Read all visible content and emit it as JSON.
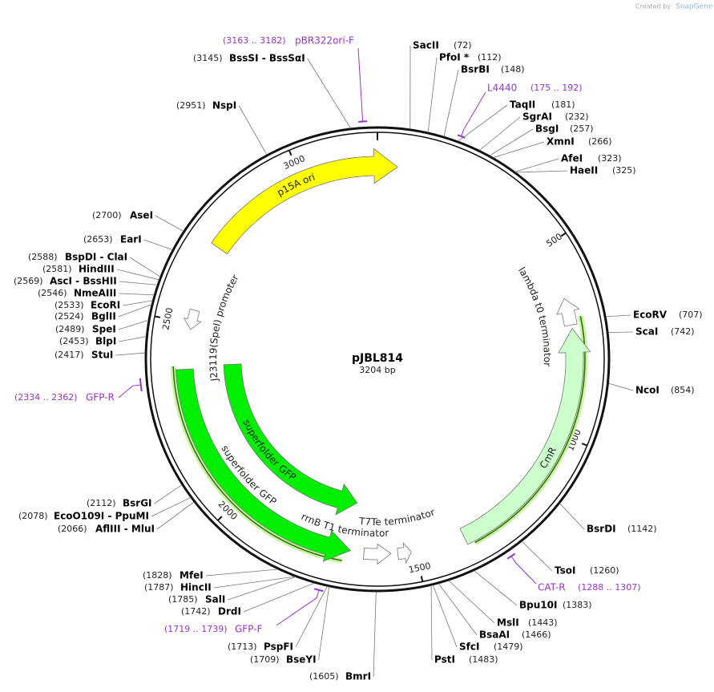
{
  "credit": "Created by",
  "brand": "SnapGene",
  "plasmid": {
    "name": "pJBL814",
    "size": {
      "value": 3204,
      "label": "3204 bp"
    }
  },
  "ticks": [
    500,
    1000,
    1500,
    2000,
    2500,
    3000
  ],
  "sites": [
    {
      "name": "SacII",
      "position": {
        "value": 72,
        "label": "(72)"
      }
    },
    {
      "name": "PfoI *",
      "position": {
        "value": 112,
        "label": "(112)"
      }
    },
    {
      "name": "BsrBI",
      "position": {
        "value": 148,
        "label": "(148)"
      }
    },
    {
      "name": "TaqII",
      "position": {
        "value": 181,
        "label": "(181)"
      }
    },
    {
      "name": "SgrAI",
      "position": {
        "value": 232,
        "label": "(232)"
      }
    },
    {
      "name": "BsgI",
      "position": {
        "value": 257,
        "label": "(257)"
      }
    },
    {
      "name": "XmnI",
      "position": {
        "value": 266,
        "label": "(266)"
      }
    },
    {
      "name": "AfeI",
      "position": {
        "value": 323,
        "label": "(323)"
      }
    },
    {
      "name": "HaeII",
      "position": {
        "value": 325,
        "label": "(325)"
      }
    },
    {
      "name": "EcoRV",
      "position": {
        "value": 707,
        "label": "(707)"
      }
    },
    {
      "name": "ScaI",
      "position": {
        "value": 742,
        "label": "(742)"
      }
    },
    {
      "name": "NcoI",
      "position": {
        "value": 854,
        "label": "(854)"
      }
    },
    {
      "name": "BsrDI",
      "position": {
        "value": 1142,
        "label": "(1142)"
      }
    },
    {
      "name": "TsoI",
      "position": {
        "value": 1260,
        "label": "(1260)"
      }
    },
    {
      "name": "Bpu10I",
      "position": {
        "value": 1383,
        "label": "(1383)"
      }
    },
    {
      "name": "MslI",
      "position": {
        "value": 1443,
        "label": "(1443)"
      }
    },
    {
      "name": "BsaAI",
      "position": {
        "value": 1466,
        "label": "(1466)"
      }
    },
    {
      "name": "SfcI",
      "position": {
        "value": 1479,
        "label": "(1479)"
      }
    },
    {
      "name": "PstI",
      "position": {
        "value": 1483,
        "label": "(1483)"
      }
    },
    {
      "name": "BmrI",
      "position": {
        "value": 1605,
        "label": "(1605)"
      }
    },
    {
      "name": "BseYI",
      "position": {
        "value": 1709,
        "label": "(1709)"
      }
    },
    {
      "name": "PspFI",
      "position": {
        "value": 1713,
        "label": "(1713)"
      }
    },
    {
      "name": "DrdI",
      "position": {
        "value": 1742,
        "label": "(1742)"
      }
    },
    {
      "name": "SalI",
      "position": {
        "value": 1785,
        "label": "(1785)"
      }
    },
    {
      "name": "HincII",
      "position": {
        "value": 1787,
        "label": "(1787)"
      }
    },
    {
      "name": "MfeI",
      "position": {
        "value": 1828,
        "label": "(1828)"
      }
    },
    {
      "name": "AflIII - MluI",
      "position": {
        "value": 2066,
        "label": "(2066)"
      }
    },
    {
      "name": "EcoO109I - PpuMI",
      "position": {
        "value": 2078,
        "label": "(2078)"
      }
    },
    {
      "name": "BsrGI",
      "position": {
        "value": 2112,
        "label": "(2112)"
      }
    },
    {
      "name": "StuI",
      "position": {
        "value": 2417,
        "label": "(2417)"
      }
    },
    {
      "name": "BlpI",
      "position": {
        "value": 2453,
        "label": "(2453)"
      }
    },
    {
      "name": "SpeI",
      "position": {
        "value": 2489,
        "label": "(2489)"
      }
    },
    {
      "name": "BglII",
      "position": {
        "value": 2524,
        "label": "(2524)"
      }
    },
    {
      "name": "EcoRI",
      "position": {
        "value": 2533,
        "label": "(2533)"
      }
    },
    {
      "name": "NmeAIII",
      "position": {
        "value": 2546,
        "label": "(2546)"
      }
    },
    {
      "name": "AscI - BssHII",
      "position": {
        "value": 2569,
        "label": "(2569)"
      }
    },
    {
      "name": "HindIII",
      "position": {
        "value": 2581,
        "label": "(2581)"
      }
    },
    {
      "name": "BspDI - ClaI",
      "position": {
        "value": 2588,
        "label": "(2588)"
      }
    },
    {
      "name": "EarI",
      "position": {
        "value": 2653,
        "label": "(2653)"
      }
    },
    {
      "name": "AseI",
      "position": {
        "value": 2700,
        "label": "(2700)"
      }
    },
    {
      "name": "NspI",
      "position": {
        "value": 2951,
        "label": "(2951)"
      }
    },
    {
      "name": "BssSI - BssSαI",
      "position": {
        "value": 3145,
        "label": "(3145)"
      }
    }
  ],
  "primers": [
    {
      "name": "pBR322ori-F",
      "range": {
        "start": 3163,
        "end": 3182,
        "label": "(3163 .. 3182)"
      }
    },
    {
      "name": "L4440",
      "range": {
        "start": 175,
        "end": 192,
        "label": "(175 .. 192)"
      }
    },
    {
      "name": "CAT-R",
      "range": {
        "start": 1288,
        "end": 1307,
        "label": "(1288 .. 1307)"
      }
    },
    {
      "name": "GFP-F",
      "range": {
        "start": 1719,
        "end": 1739,
        "label": "(1719 .. 1739)"
      }
    },
    {
      "name": "GFP-R",
      "range": {
        "start": 2334,
        "end": 2362,
        "label": "(2334 .. 2362)"
      }
    }
  ],
  "features": [
    {
      "label": "p15A ori"
    },
    {
      "label": "lambda t0 terminator"
    },
    {
      "label": "CmR"
    },
    {
      "label": "T7Te terminator"
    },
    {
      "label": "rrnB T1 terminator"
    },
    {
      "label": "superfolder GFP"
    },
    {
      "label": "superfolder GFP"
    },
    {
      "label": "J23119(SpeI) promoter"
    }
  ]
}
